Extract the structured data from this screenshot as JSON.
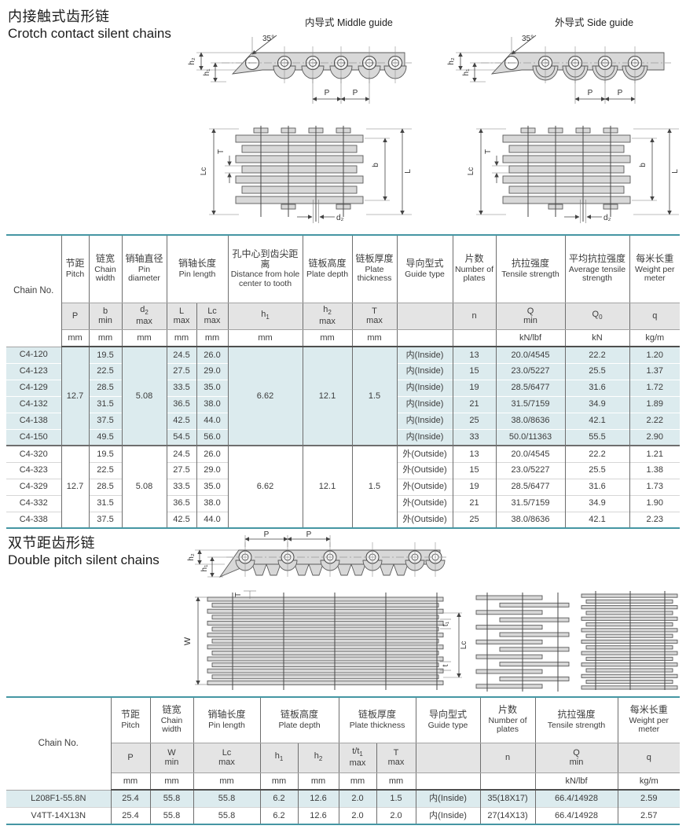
{
  "section1": {
    "title_zh": "内接触式齿形链",
    "title_en": "Crotch contact silent chains",
    "label_middle_guide": "内导式 Middle guide",
    "label_side_guide": "外导式 Side guide"
  },
  "section2": {
    "title_zh": "双节距齿形链",
    "title_en": "Double pitch silent chains"
  },
  "dims": {
    "angle": "35°",
    "P": "P",
    "h1": "h₁",
    "h2": "h₂",
    "Lc": "Lc",
    "L": "L",
    "b": "b",
    "T": "T",
    "d2": "d₂",
    "W": "W",
    "t": "t",
    "t1": "t₁"
  },
  "table1": {
    "widths": [
      70,
      35,
      42,
      57,
      38,
      40,
      95,
      63,
      57,
      71,
      55,
      88,
      82,
      64
    ],
    "hh": [
      86,
      34,
      22
    ],
    "rh": 21,
    "header": [
      {
        "en": "Chain No.",
        "rs": 3
      },
      {
        "zh": "节距",
        "en": "Pitch"
      },
      {
        "zh": "链宽",
        "en": "Chain width"
      },
      {
        "zh": "销轴直径",
        "en": "Pin diameter"
      },
      {
        "zh": "销轴长度",
        "en": "Pin length",
        "cs": 2
      },
      {
        "zh": "孔中心到齿尖距离",
        "en": "Distance from hole center to tooth"
      },
      {
        "zh": "链板高度",
        "en": "Plate depth"
      },
      {
        "zh": "链板厚度",
        "en": "Plate thickness"
      },
      {
        "zh": "导向型式",
        "en": "Guide type"
      },
      {
        "zh": "片数",
        "en": "Number of plates"
      },
      {
        "zh": "抗拉强度",
        "en": "Tensile strength"
      },
      {
        "zh": "平均抗拉强度",
        "en": "Average tensile strength"
      },
      {
        "zh": "每米长重",
        "en": "Weight per meter"
      }
    ],
    "symbols": [
      "P",
      "b|min",
      "d_2|max",
      "L|max",
      "Lc|max",
      "h_1",
      "h_2|max",
      "T|max",
      "",
      "n",
      "Q|min",
      "Q_0",
      "q"
    ],
    "units": [
      "mm",
      "mm",
      "mm",
      "mm",
      "mm",
      "mm",
      "mm",
      "mm",
      "",
      "",
      "kN/lbf",
      "kN",
      "kg/m"
    ],
    "rows": [
      {
        "hl": true,
        "cells": [
          "C4-120",
          {
            "t": "12.7",
            "rs": 6
          },
          "19.5",
          {
            "t": "5.08",
            "rs": 6
          },
          "24.5",
          "26.0",
          {
            "t": "6.62",
            "rs": 6
          },
          {
            "t": "12.1",
            "rs": 6
          },
          {
            "t": "1.5",
            "rs": 6
          },
          "内(Inside)",
          "13",
          "20.0/4545",
          "22.2",
          "1.20"
        ]
      },
      {
        "hl": true,
        "cells": [
          "C4-123",
          "22.5",
          "27.5",
          "29.0",
          "内(Inside)",
          "15",
          "23.0/5227",
          "25.5",
          "1.37"
        ]
      },
      {
        "hl": true,
        "cells": [
          "C4-129",
          "28.5",
          "33.5",
          "35.0",
          "内(Inside)",
          "19",
          "28.5/6477",
          "31.6",
          "1.72"
        ]
      },
      {
        "hl": true,
        "cells": [
          "C4-132",
          "31.5",
          "36.5",
          "38.0",
          "内(Inside)",
          "21",
          "31.5/7159",
          "34.9",
          "1.89"
        ]
      },
      {
        "hl": true,
        "cells": [
          "C4-138",
          "37.5",
          "42.5",
          "44.0",
          "内(Inside)",
          "25",
          "38.0/8636",
          "42.1",
          "2.22"
        ]
      },
      {
        "hl": true,
        "cells": [
          "C4-150",
          "49.5",
          "54.5",
          "56.0",
          "内(Inside)",
          "33",
          "50.0/11363",
          "55.5",
          "2.90"
        ]
      },
      {
        "gsep": true,
        "cells": [
          "C4-320",
          {
            "t": "12.7",
            "rs": 5
          },
          "19.5",
          {
            "t": "5.08",
            "rs": 5
          },
          "24.5",
          "26.0",
          {
            "t": "6.62",
            "rs": 5
          },
          {
            "t": "12.1",
            "rs": 5
          },
          {
            "t": "1.5",
            "rs": 5
          },
          "外(Outside)",
          "13",
          "20.0/4545",
          "22.2",
          "1.21"
        ]
      },
      {
        "cells": [
          "C4-323",
          "22.5",
          "27.5",
          "29.0",
          "外(Outside)",
          "15",
          "23.0/5227",
          "25.5",
          "1.38"
        ]
      },
      {
        "cells": [
          "C4-329",
          "28.5",
          "33.5",
          "35.0",
          "外(Outside)",
          "19",
          "28.5/6477",
          "31.6",
          "1.73"
        ]
      },
      {
        "cells": [
          "C4-332",
          "31.5",
          "36.5",
          "38.0",
          "外(Outside)",
          "21",
          "31.5/7159",
          "34.9",
          "1.90"
        ]
      },
      {
        "cells": [
          "C4-338",
          "37.5",
          "42.5",
          "44.0",
          "外(Outside)",
          "25",
          "38.0/8636",
          "42.1",
          "2.23"
        ]
      }
    ]
  },
  "table2": {
    "widths": [
      133,
      50,
      55,
      85,
      48,
      52,
      48,
      50,
      82,
      70,
      105,
      79
    ],
    "hh": [
      58,
      38,
      22
    ],
    "rh": 22,
    "header": [
      {
        "en": "Chain No.",
        "rs": 3
      },
      {
        "zh": "节距",
        "en": "Pitch"
      },
      {
        "zh": "链宽",
        "en": "Chain width"
      },
      {
        "zh": "销轴长度",
        "en": "Pin length"
      },
      {
        "zh": "链板高度",
        "en": "Plate depth",
        "cs": 2
      },
      {
        "zh": "链板厚度",
        "en": "Plate thickness",
        "cs": 2
      },
      {
        "zh": "导向型式",
        "en": "Guide type"
      },
      {
        "zh": "片数",
        "en": "Number of plates"
      },
      {
        "zh": "抗拉强度",
        "en": "Tensile strength"
      },
      {
        "zh": "每米长重",
        "en": "Weight per meter"
      }
    ],
    "symbols": [
      "P",
      "W|min",
      "Lc|max",
      "h_1",
      "h_2",
      "t/t_1|max",
      "T|max",
      "",
      "n",
      "Q|min",
      "q"
    ],
    "units": [
      "mm",
      "mm",
      "mm",
      "mm",
      "mm",
      "mm",
      "mm",
      "",
      "",
      "kN/lbf",
      "kg/m"
    ],
    "rows": [
      {
        "hl": true,
        "cells": [
          "L208F1-55.8N",
          "25.4",
          "55.8",
          "55.8",
          "6.2",
          "12.6",
          "2.0",
          "1.5",
          "内(Inside)",
          "35(18X17)",
          "66.4/14928",
          "2.59"
        ]
      },
      {
        "cells": [
          "V4TT-14X13N",
          "25.4",
          "55.8",
          "55.8",
          "6.2",
          "12.6",
          "2.0",
          "2.0",
          "内(Inside)",
          "27(14X13)",
          "66.4/14928",
          "2.57"
        ]
      }
    ]
  },
  "colors": {
    "accent_teal": "#4596a3",
    "row_highlight": "#dcebee",
    "header_band": "#e4e4e4"
  }
}
